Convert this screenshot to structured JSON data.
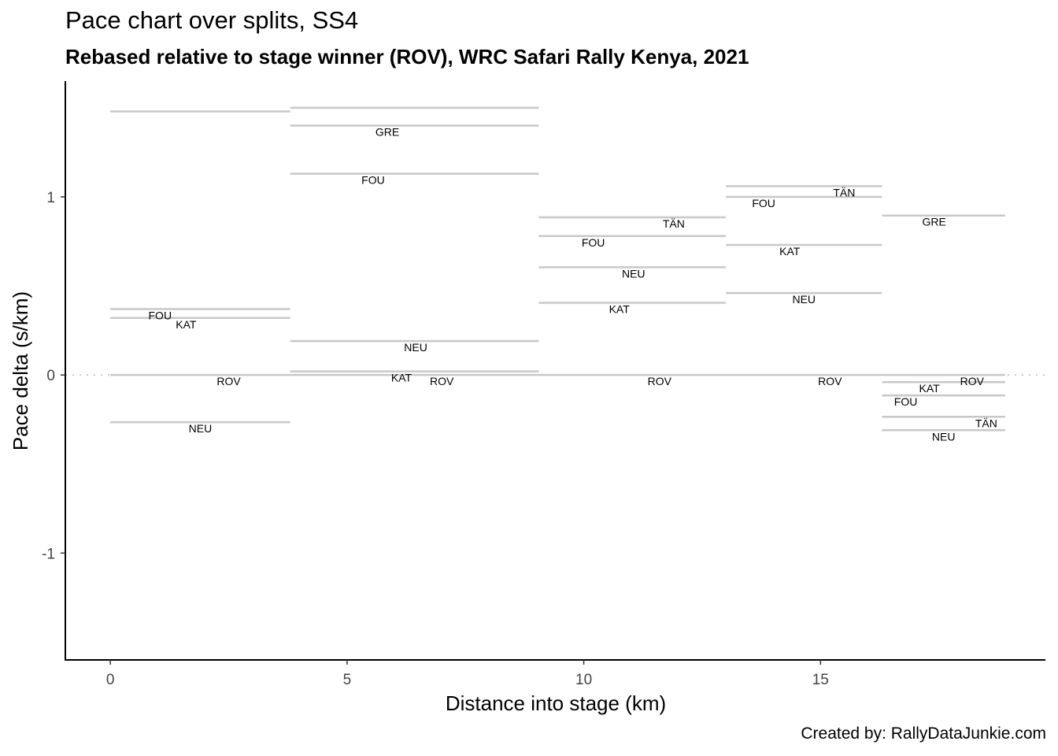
{
  "chart_data": {
    "type": "segment",
    "title": "Pace chart over splits, SS4",
    "subtitle": "Rebased relative to stage winner (ROV), WRC Safari Rally Kenya, 2021",
    "caption": "Created by: RallyDataJunkie.com",
    "xlabel": "Distance into stage (km)",
    "ylabel": "Pace delta (s/km)",
    "xlim": [
      -0.95,
      19.75
    ],
    "ylim": [
      1.65,
      -1.6
    ],
    "y_reversed": true,
    "x_ticks": [
      0,
      5,
      10,
      15
    ],
    "y_ticks": [
      -1,
      0,
      1
    ],
    "x_tick_labels": [
      "0",
      "5",
      "10",
      "15"
    ],
    "y_tick_labels": [
      "-1",
      "0",
      "1"
    ],
    "reference_line": {
      "y": 0,
      "style": "dotted"
    },
    "grid": false,
    "line_color": "#c8c8c8",
    "segments": [
      {
        "x0": 0.0,
        "x1": 3.8,
        "pace": -0.265,
        "label": "NEU",
        "label_x": 1.9
      },
      {
        "x0": 0.0,
        "x1": 3.8,
        "pace": 0.0,
        "label": "ROV",
        "label_x": 2.5
      },
      {
        "x0": 0.0,
        "x1": 3.8,
        "pace": 0.32,
        "label": "KAT",
        "label_x": 1.6
      },
      {
        "x0": 0.0,
        "x1": 3.8,
        "pace": 0.37,
        "label": "FOU",
        "label_x": 1.05
      },
      {
        "x0": 0.0,
        "x1": 3.8,
        "pace": 1.48,
        "label": "",
        "label_x": 1.9
      },
      {
        "x0": 3.8,
        "x1": 9.05,
        "pace": 0.0,
        "label": "ROV",
        "label_x": 7.0
      },
      {
        "x0": 3.8,
        "x1": 9.05,
        "pace": 0.02,
        "label": "KAT",
        "label_x": 6.15
      },
      {
        "x0": 3.8,
        "x1": 9.05,
        "pace": 0.19,
        "label": "NEU",
        "label_x": 6.45
      },
      {
        "x0": 3.8,
        "x1": 9.05,
        "pace": 1.13,
        "label": "FOU",
        "label_x": 5.55
      },
      {
        "x0": 3.8,
        "x1": 9.05,
        "pace": 1.4,
        "label": "GRE",
        "label_x": 5.85
      },
      {
        "x0": 3.8,
        "x1": 9.05,
        "pace": 1.5,
        "label": "",
        "label_x": 6.4
      },
      {
        "x0": 9.05,
        "x1": 13.0,
        "pace": 0.0,
        "label": "ROV",
        "label_x": 11.6
      },
      {
        "x0": 9.05,
        "x1": 13.0,
        "pace": 0.405,
        "label": "KAT",
        "label_x": 10.75
      },
      {
        "x0": 9.05,
        "x1": 13.0,
        "pace": 0.605,
        "label": "NEU",
        "label_x": 11.05
      },
      {
        "x0": 9.05,
        "x1": 13.0,
        "pace": 0.78,
        "label": "FOU",
        "label_x": 10.2
      },
      {
        "x0": 9.05,
        "x1": 13.0,
        "pace": 0.885,
        "label": "TÄN",
        "label_x": 11.9
      },
      {
        "x0": 13.0,
        "x1": 16.3,
        "pace": 0.0,
        "label": "ROV",
        "label_x": 15.2
      },
      {
        "x0": 13.0,
        "x1": 16.3,
        "pace": 0.46,
        "label": "NEU",
        "label_x": 14.65
      },
      {
        "x0": 13.0,
        "x1": 16.3,
        "pace": 0.73,
        "label": "KAT",
        "label_x": 14.35
      },
      {
        "x0": 13.0,
        "x1": 16.3,
        "pace": 1.0,
        "label": "FOU",
        "label_x": 13.8
      },
      {
        "x0": 13.0,
        "x1": 16.3,
        "pace": 1.06,
        "label": "TÄN",
        "label_x": 15.5
      },
      {
        "x0": 16.3,
        "x1": 18.9,
        "pace": -0.31,
        "label": "NEU",
        "label_x": 17.6
      },
      {
        "x0": 16.3,
        "x1": 18.9,
        "pace": -0.235,
        "label": "TÄN",
        "label_x": 18.5
      },
      {
        "x0": 16.3,
        "x1": 18.9,
        "pace": -0.115,
        "label": "FOU",
        "label_x": 16.8
      },
      {
        "x0": 16.3,
        "x1": 18.9,
        "pace": -0.04,
        "label": "KAT",
        "label_x": 17.3
      },
      {
        "x0": 16.3,
        "x1": 18.9,
        "pace": 0.0,
        "label": "ROV",
        "label_x": 18.2
      },
      {
        "x0": 16.3,
        "x1": 18.9,
        "pace": 0.895,
        "label": "GRE",
        "label_x": 17.4
      }
    ]
  }
}
